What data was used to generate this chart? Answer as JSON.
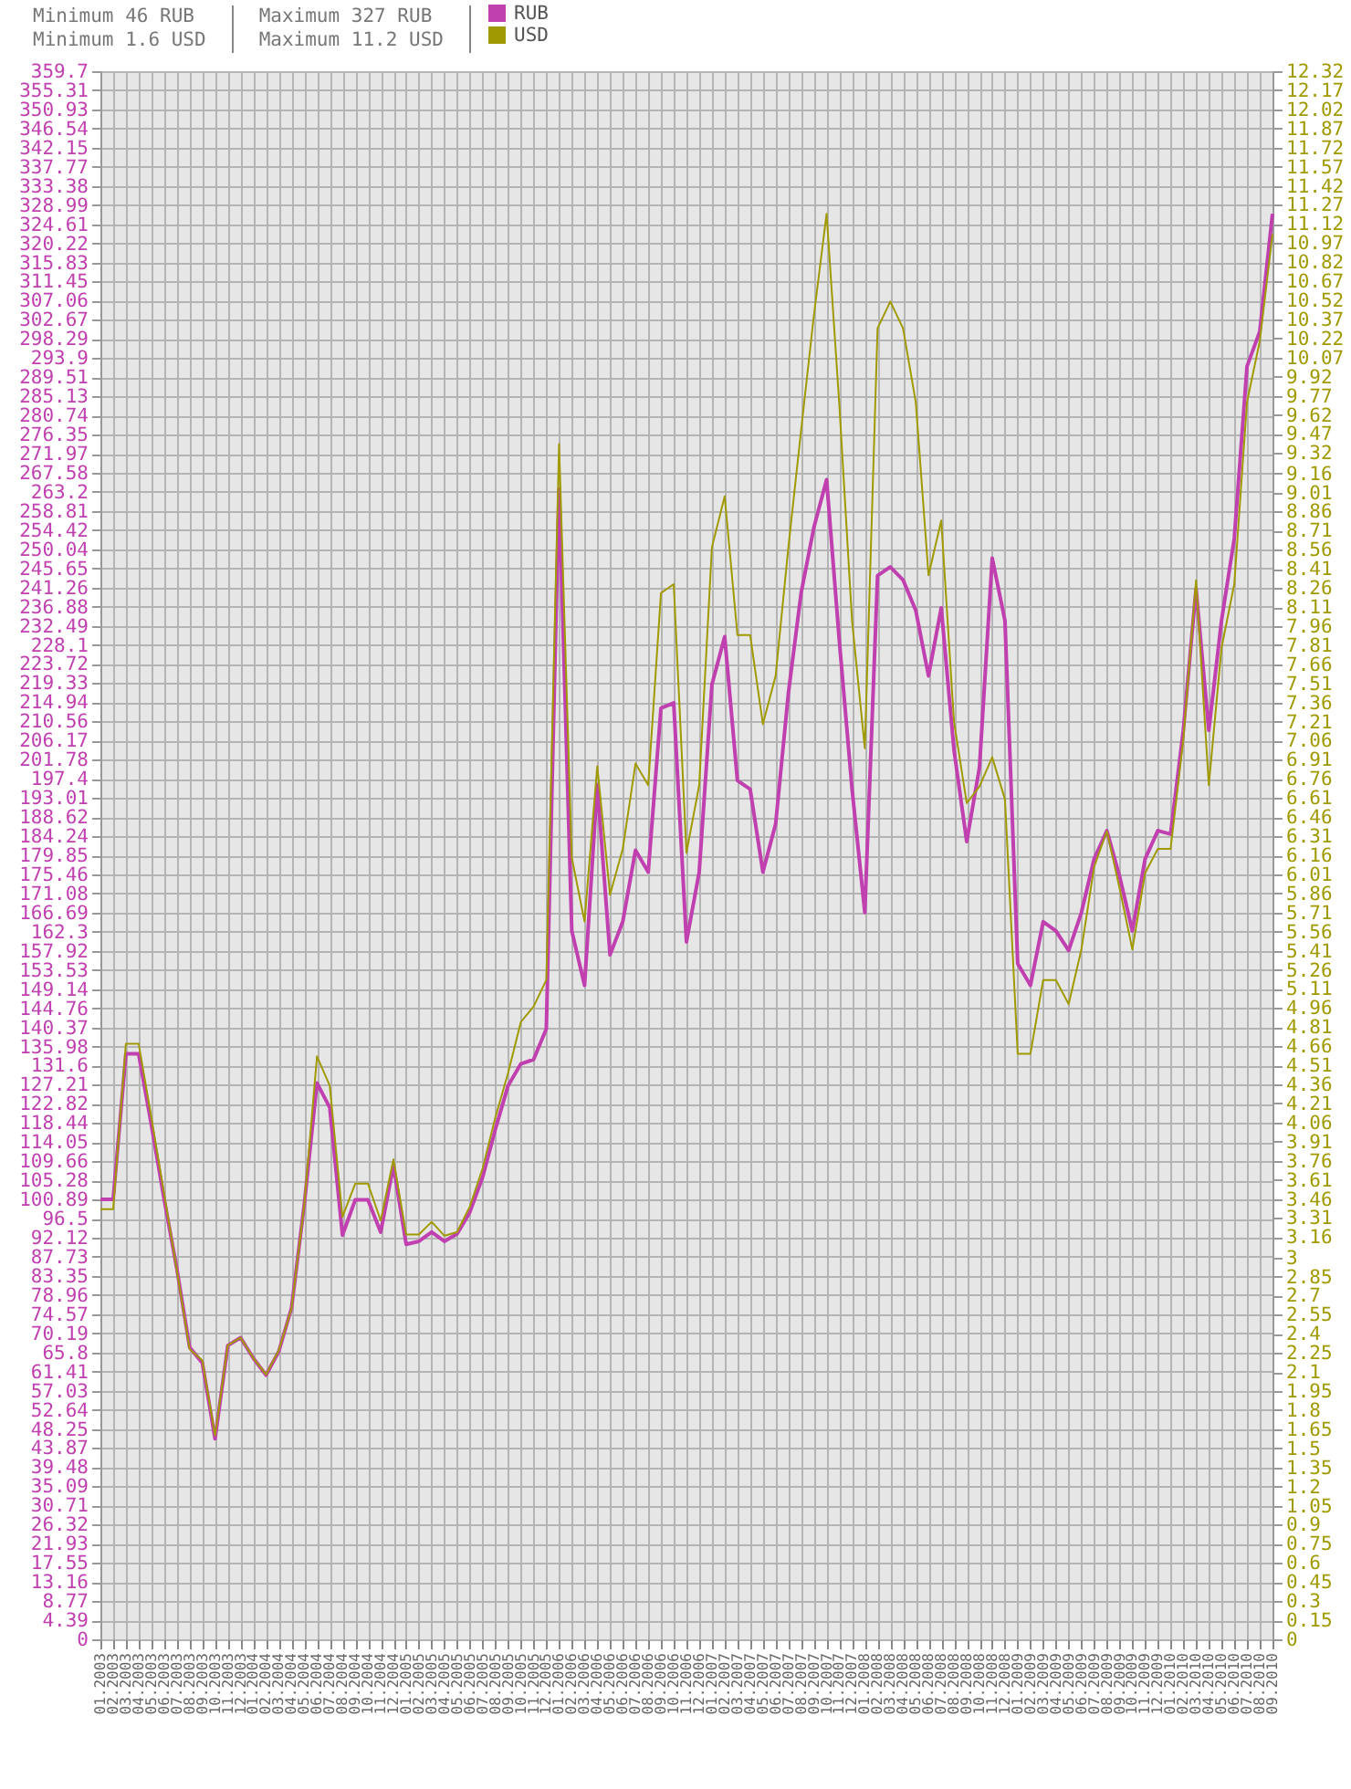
{
  "chart_data": {
    "type": "line",
    "annotations": [
      "Minimum 46 RUB",
      "Minimum 1.6 USD",
      "Maximum 327 RUB",
      "Maximum 11.2 USD"
    ],
    "categories": [
      "01.2003",
      "02.2003",
      "03.2003",
      "04.2003",
      "05.2003",
      "06.2003",
      "07.2003",
      "08.2003",
      "09.2003",
      "10.2003",
      "11.2003",
      "12.2003",
      "01.2004",
      "02.2004",
      "03.2004",
      "04.2004",
      "05.2004",
      "06.2004",
      "07.2004",
      "08.2004",
      "09.2004",
      "10.2004",
      "11.2004",
      "12.2004",
      "01.2005",
      "02.2005",
      "03.2005",
      "04.2005",
      "05.2005",
      "06.2005",
      "07.2005",
      "08.2005",
      "09.2005",
      "10.2005",
      "11.2005",
      "12.2005",
      "01.2006",
      "02.2006",
      "03.2006",
      "04.2006",
      "05.2006",
      "06.2006",
      "07.2006",
      "08.2006",
      "09.2006",
      "10.2006",
      "11.2006",
      "12.2006",
      "01.2007",
      "02.2007",
      "03.2007",
      "04.2007",
      "05.2007",
      "06.2007",
      "07.2007",
      "08.2007",
      "09.2007",
      "10.2007",
      "11.2007",
      "12.2007",
      "01.2008",
      "02.2008",
      "03.2008",
      "04.2008",
      "05.2008",
      "06.2008",
      "07.2008",
      "08.2008",
      "09.2008",
      "10.2008",
      "11.2008",
      "12.2008",
      "01.2009",
      "02.2009",
      "03.2009",
      "04.2009",
      "05.2009",
      "06.2009",
      "07.2009",
      "08.2009",
      "09.2009",
      "10.2009",
      "11.2009",
      "12.2009",
      "01.2010",
      "02.2010",
      "03.2010",
      "04.2010",
      "05.2010",
      "06.2010",
      "07.2010",
      "08.2010",
      "09.2010"
    ],
    "series": [
      {
        "name": "RUB",
        "color": "#c040b0",
        "values": [
          100.9,
          100.9,
          134.3,
          134.3,
          118,
          101,
          85,
          67,
          63.4,
          46,
          67.4,
          69.2,
          64.5,
          60.6,
          66,
          76,
          99.7,
          127.6,
          122,
          92.7,
          100.8,
          100.8,
          93.4,
          108.7,
          90.6,
          91.3,
          93.4,
          91.3,
          93,
          98,
          106,
          117,
          127,
          132,
          133,
          140,
          263.8,
          162.5,
          150,
          196,
          157,
          164.6,
          181,
          176,
          213.6,
          214.8,
          160,
          176,
          219,
          230,
          197,
          195,
          176,
          187,
          217,
          240,
          255,
          266,
          229,
          195,
          166.7,
          244,
          246,
          243,
          236,
          221,
          236.6,
          204,
          183,
          200,
          248,
          233.7,
          155,
          150,
          164.6,
          162.5,
          158,
          166.7,
          179,
          185.5,
          175,
          162.5,
          179,
          185.5,
          184.7,
          208.5,
          241,
          208.5,
          233.7,
          252.5,
          292,
          300,
          327
        ]
      },
      {
        "name": "USD",
        "color": "#a09a00",
        "axis": "y2",
        "values": [
          3.38,
          3.38,
          4.68,
          4.68,
          4.1,
          3.5,
          2.9,
          2.28,
          2.19,
          1.6,
          2.31,
          2.37,
          2.21,
          2.08,
          2.27,
          2.6,
          3.41,
          4.58,
          4.35,
          3.32,
          3.58,
          3.58,
          3.29,
          3.77,
          3.18,
          3.18,
          3.28,
          3.17,
          3.2,
          3.4,
          3.7,
          4.1,
          4.45,
          4.85,
          4.97,
          5.18,
          9.39,
          6.14,
          5.64,
          6.86,
          5.85,
          6.21,
          6.88,
          6.71,
          8.22,
          8.29,
          6.18,
          6.71,
          8.58,
          8.98,
          7.89,
          7.89,
          7.19,
          7.57,
          8.58,
          9.5,
          10.4,
          11.2,
          9.7,
          8.0,
          7.0,
          10.3,
          10.51,
          10.3,
          9.72,
          8.36,
          8.79,
          7.21,
          6.57,
          6.7,
          6.93,
          6.6,
          4.6,
          4.6,
          5.18,
          5.18,
          4.99,
          5.42,
          6.07,
          6.35,
          5.9,
          5.42,
          6.02,
          6.21,
          6.21,
          7.07,
          8.32,
          6.71,
          7.79,
          8.29,
          9.72,
          10.2,
          11.04
        ]
      }
    ],
    "ylim": [
      0,
      359.7
    ],
    "yticks": [
      0,
      4.39,
      8.77,
      13.16,
      17.55,
      21.93,
      26.32,
      30.71,
      35.09,
      39.48,
      43.87,
      48.25,
      52.64,
      57.03,
      61.41,
      65.8,
      70.19,
      74.57,
      78.96,
      83.35,
      87.73,
      92.12,
      96.5,
      100.89,
      105.28,
      109.66,
      114.05,
      118.44,
      122.82,
      127.21,
      131.6,
      135.98,
      140.37,
      144.76,
      149.14,
      153.53,
      157.92,
      162.3,
      166.69,
      171.08,
      175.46,
      179.85,
      184.24,
      188.62,
      193.01,
      197.4,
      201.78,
      206.17,
      210.56,
      214.94,
      219.33,
      223.72,
      228.1,
      232.49,
      236.88,
      241.26,
      245.65,
      250.04,
      254.42,
      258.81,
      263.2,
      267.58,
      271.97,
      276.35,
      280.74,
      285.13,
      289.51,
      293.9,
      298.29,
      302.67,
      307.06,
      311.45,
      315.83,
      320.22,
      324.61,
      328.99,
      333.38,
      337.77,
      342.15,
      346.54,
      350.93,
      355.31,
      359.7
    ],
    "y2lim": [
      0,
      12.32
    ],
    "y2ticks": [
      0,
      0.15,
      0.3,
      0.45,
      0.6,
      0.75,
      0.9,
      1.05,
      1.2,
      1.35,
      1.5,
      1.65,
      1.8,
      1.95,
      2.1,
      2.25,
      2.4,
      2.55,
      2.7,
      2.85,
      3,
      3.16,
      3.31,
      3.46,
      3.61,
      3.76,
      3.91,
      4.06,
      4.21,
      4.36,
      4.51,
      4.66,
      4.81,
      4.96,
      5.11,
      5.26,
      5.41,
      5.56,
      5.71,
      5.86,
      6.01,
      6.16,
      6.31,
      6.46,
      6.61,
      6.76,
      6.91,
      7.06,
      7.21,
      7.36,
      7.51,
      7.66,
      7.81,
      7.96,
      8.11,
      8.26,
      8.41,
      8.56,
      8.71,
      8.86,
      9.01,
      9.16,
      9.32,
      9.47,
      9.62,
      9.77,
      9.92,
      10.07,
      10.22,
      10.37,
      10.52,
      10.67,
      10.82,
      10.97,
      11.12,
      11.27,
      11.42,
      11.57,
      11.72,
      11.87,
      12.02,
      12.17,
      12.32
    ],
    "grid": true,
    "legend": "top"
  }
}
